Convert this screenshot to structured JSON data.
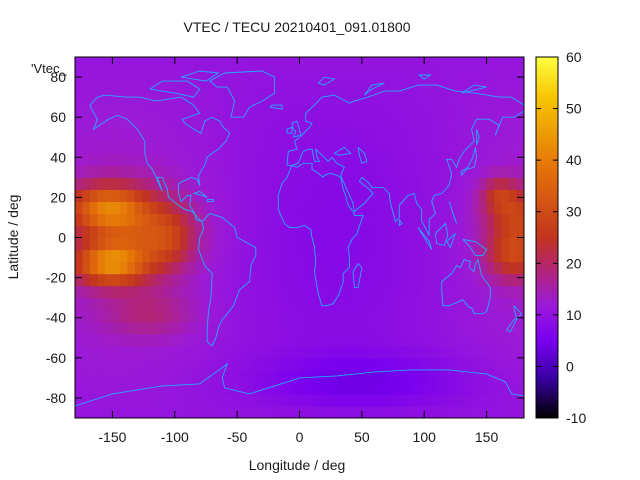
{
  "chart_data": {
    "type": "heatmap",
    "title": "VTEC / TECU 20210401_091.01800",
    "xlabel": "Longitude / deg",
    "ylabel": "Latitude / deg",
    "legend_label": "'Vtec_",
    "xlim": [
      -180,
      180
    ],
    "ylim": [
      -90,
      90
    ],
    "x_ticks": [
      -150,
      -100,
      -50,
      0,
      50,
      100,
      150
    ],
    "y_ticks": [
      -80,
      -60,
      -40,
      -20,
      0,
      20,
      40,
      60,
      80
    ],
    "colorbar": {
      "range": [
        -10,
        60
      ],
      "ticks": [
        -10,
        0,
        10,
        20,
        30,
        40,
        50,
        60
      ],
      "palette": [
        "#000000",
        "#3b00a8",
        "#7a00f0",
        "#9c1bd8",
        "#b02380",
        "#c2341e",
        "#e3700a",
        "#f7c400",
        "#ffff40"
      ],
      "palette_stops": [
        -10,
        -2,
        5,
        12,
        18,
        25,
        38,
        52,
        60
      ]
    },
    "field": {
      "background_vtec": 10,
      "features": [
        {
          "region": "Pacific equatorial anomaly north crest",
          "lon": -152,
          "lat": 13,
          "vtec": 40
        },
        {
          "region": "Pacific equatorial anomaly south crest",
          "lon": -152,
          "lat": -13,
          "vtec": 42
        },
        {
          "region": "Western Pacific equatorial band",
          "lon": 178,
          "lat": 2,
          "vtec": 30
        },
        {
          "region": "Antarctic low",
          "lon": 60,
          "lat": -75,
          "vtec": 3
        }
      ]
    },
    "overlay": "coastlines"
  }
}
